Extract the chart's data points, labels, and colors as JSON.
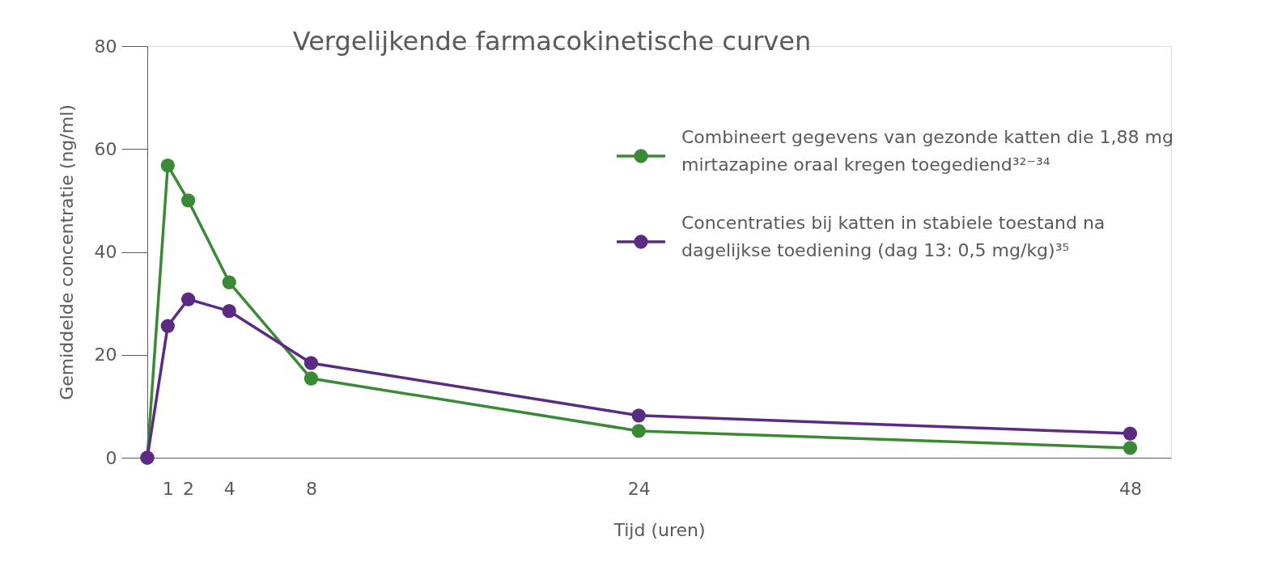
{
  "chart_data": {
    "type": "line",
    "title": "Vergelijkende farmacokinetische curven",
    "xlabel": "Tijd (uren)",
    "ylabel": "Gemiddelde concentratie (ng/ml)",
    "x": [
      0,
      1,
      2,
      4,
      8,
      24,
      48
    ],
    "series": [
      {
        "name": "Combineert gegevens van gezonde katten die 1,88 mg mirtazapine oraal kregen toegediend³²⁻³⁴",
        "color": "#3a8a35",
        "values": [
          0,
          56.8,
          50.0,
          34.1,
          15.4,
          5.2,
          1.9
        ]
      },
      {
        "name": "Concentraties bij katten in stabiele toestand na dagelijkse toediening (dag 13: 0,5 mg/kg)³⁵",
        "color": "#5b2a82",
        "values": [
          0,
          25.6,
          30.8,
          28.5,
          18.4,
          8.2,
          4.7
        ]
      }
    ],
    "xlim": [
      0,
      50
    ],
    "xticks": [
      1,
      2,
      4,
      8,
      24,
      48
    ],
    "ylim": [
      0,
      80
    ],
    "yticks": [
      0,
      20,
      40,
      60,
      80
    ],
    "grid": false,
    "legend": "top right",
    "marker": "circle",
    "line_style": "solid"
  }
}
